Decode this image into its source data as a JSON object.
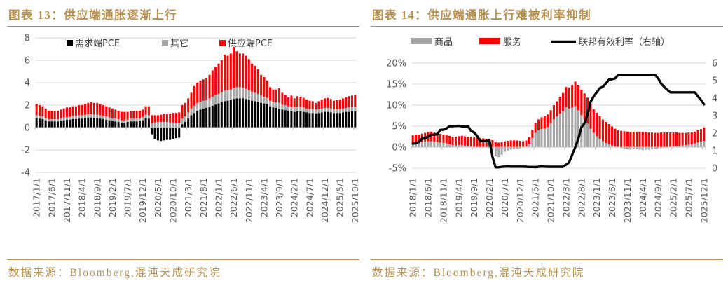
{
  "page": {
    "background": "#FFFFFF"
  },
  "panels": [
    {
      "title": "图表 13：供应端通胀逐渐上行",
      "source": "数据来源：Bloomberg,混沌天成研究院"
    },
    {
      "title": "图表 14：供应端通胀上行难被利率抑制",
      "source": "数据来源：Bloomberg,混沌天成研究院"
    }
  ],
  "colors": {
    "accent_gold": "#B9914E",
    "bar_black": "#000000",
    "bar_gray": "#A6A6A6",
    "bar_red": "#FF0000",
    "line_black": "#000000",
    "gridline": "#D9D9D9",
    "axis_line": "#BFBFBF",
    "tick_text": "#595959",
    "legend_text": "#404040"
  },
  "chart_data": [
    {
      "type": "bar",
      "subtype": "stacked",
      "title": "图表 13：供应端通胀逐渐上行",
      "x_start": "2017/1/1",
      "x_end": "2025/10/1",
      "x_freq": "monthly",
      "x_tick_every": 5,
      "x_tick_labels": [
        "2017/1/1",
        "2017/6/1",
        "2017/11/1",
        "2018/4/1",
        "2018/9/1",
        "2019/2/1",
        "2019/7/1",
        "2019/12/1",
        "2020/5/1",
        "2020/10/1",
        "2021/3/1",
        "2021/8/1",
        "2022/1/1",
        "2022/6/1",
        "2022/11/1",
        "2023/4/1",
        "2023/9/1",
        "2024/2/1",
        "2024/7/1",
        "2024/12/1",
        "2025/5/1",
        "2025/10/1"
      ],
      "ylim": [
        -4,
        8
      ],
      "y_tick_step": 2,
      "grid": true,
      "legend_position": "top",
      "series": [
        {
          "name": "需求端PCE",
          "kind": "bar",
          "color_key": "bar_black",
          "values": [
            0.85,
            0.8,
            0.75,
            0.65,
            0.55,
            0.55,
            0.55,
            0.55,
            0.6,
            0.65,
            0.7,
            0.7,
            0.75,
            0.75,
            0.8,
            0.8,
            0.85,
            0.9,
            0.9,
            0.85,
            0.85,
            0.8,
            0.75,
            0.7,
            0.65,
            0.6,
            0.55,
            0.5,
            0.45,
            0.45,
            0.5,
            0.55,
            0.55,
            0.55,
            0.6,
            0.65,
            0.85,
            0.8,
            -0.6,
            -1.0,
            -1.15,
            -1.2,
            -1.15,
            -1.1,
            -1.1,
            -1.0,
            -0.95,
            -0.9,
            0.3,
            0.5,
            0.8,
            1.1,
            1.3,
            1.5,
            1.6,
            1.7,
            1.75,
            1.85,
            1.95,
            2.05,
            2.15,
            2.25,
            2.35,
            2.4,
            2.45,
            2.55,
            2.6,
            2.6,
            2.6,
            2.55,
            2.5,
            2.4,
            2.35,
            2.3,
            2.2,
            2.15,
            2.1,
            1.9,
            1.8,
            1.75,
            1.7,
            1.6,
            1.55,
            1.5,
            1.45,
            1.4,
            1.45,
            1.45,
            1.4,
            1.35,
            1.3,
            1.3,
            1.25,
            1.3,
            1.35,
            1.4,
            1.4,
            1.35,
            1.3,
            1.3,
            1.3,
            1.35,
            1.4,
            1.4,
            1.45,
            1.45
          ]
        },
        {
          "name": "其它",
          "kind": "bar",
          "color_key": "bar_gray",
          "values": [
            0.25,
            0.25,
            0.25,
            0.2,
            0.2,
            0.2,
            0.2,
            0.2,
            0.2,
            0.25,
            0.25,
            0.25,
            0.3,
            0.3,
            0.3,
            0.3,
            0.3,
            0.3,
            0.3,
            0.3,
            0.3,
            0.3,
            0.3,
            0.3,
            0.25,
            0.25,
            0.25,
            0.25,
            0.2,
            0.2,
            0.2,
            0.25,
            0.25,
            0.25,
            0.25,
            0.3,
            0.3,
            0.3,
            0.35,
            0.45,
            0.5,
            0.5,
            0.5,
            0.5,
            0.45,
            0.45,
            0.4,
            0.4,
            0.5,
            0.5,
            0.55,
            0.6,
            0.65,
            0.7,
            0.7,
            0.7,
            0.7,
            0.75,
            0.8,
            0.85,
            0.85,
            0.9,
            0.95,
            0.95,
            0.95,
            1.0,
            1.0,
            1.0,
            0.95,
            0.9,
            0.85,
            0.8,
            0.75,
            0.7,
            0.65,
            0.6,
            0.55,
            0.5,
            0.5,
            0.5,
            0.5,
            0.45,
            0.45,
            0.4,
            0.4,
            0.4,
            0.4,
            0.4,
            0.4,
            0.35,
            0.35,
            0.35,
            0.35,
            0.35,
            0.35,
            0.35,
            0.35,
            0.35,
            0.35,
            0.35,
            0.35,
            0.35,
            0.35,
            0.4,
            0.4,
            0.4
          ]
        },
        {
          "name": "供应端PCE",
          "kind": "bar",
          "color_key": "bar_red",
          "values": [
            1.0,
            0.95,
            0.9,
            0.85,
            0.75,
            0.75,
            0.75,
            0.75,
            0.8,
            0.8,
            0.85,
            0.85,
            0.85,
            0.85,
            0.9,
            0.9,
            0.95,
            1.0,
            1.05,
            1.05,
            1.05,
            1.0,
            0.95,
            0.9,
            0.9,
            0.85,
            0.8,
            0.75,
            0.75,
            0.75,
            0.7,
            0.7,
            0.7,
            0.7,
            0.65,
            0.65,
            0.75,
            0.8,
            0.75,
            0.65,
            0.6,
            0.65,
            0.7,
            0.75,
            0.8,
            0.85,
            0.9,
            0.95,
            1.2,
            1.2,
            1.25,
            1.4,
            1.75,
            1.8,
            1.9,
            1.9,
            1.95,
            2.1,
            2.35,
            2.5,
            2.7,
            2.85,
            3.2,
            3.05,
            3.2,
            3.65,
            3.2,
            3.0,
            3.05,
            2.95,
            2.75,
            2.5,
            2.4,
            2.2,
            1.85,
            1.75,
            1.55,
            1.2,
            1.1,
            1.15,
            1.3,
            1.05,
            0.9,
            0.8,
            1.0,
            0.8,
            0.95,
            0.9,
            0.85,
            0.8,
            0.75,
            0.7,
            0.6,
            0.7,
            0.8,
            0.85,
            0.9,
            0.85,
            0.75,
            0.8,
            0.85,
            0.9,
            0.95,
            1.0,
            1.0,
            1.05
          ]
        }
      ]
    },
    {
      "type": "bar",
      "subtype": "stacked+line",
      "title": "图表 14：供应端通胀上行难被利率抑制",
      "x_start": "2018/1/1",
      "x_end": "2025/12/1",
      "x_freq": "monthly",
      "x_tick_every": 5,
      "x_tick_labels": [
        "2018/1/1",
        "2018/6/1",
        "2018/11/1",
        "2019/4/1",
        "2019/9/1",
        "2020/2/1",
        "2020/7/1",
        "2020/12/1",
        "2021/5/1",
        "2021/10/1",
        "2022/3/1",
        "2022/8/1",
        "2023/1/1",
        "2023/6/1",
        "2023/11/1",
        "2024/4/1",
        "2024/9/1",
        "2025/2/1",
        "2025/7/1",
        "2025/12/1"
      ],
      "ylim_left": [
        -5,
        20
      ],
      "y_tick_step": 5,
      "y_suffix": "%",
      "ylim_right": [
        0,
        6
      ],
      "y_right_step": 1,
      "grid": true,
      "legend_position": "top",
      "series": [
        {
          "name": "商品",
          "kind": "bar",
          "axis": "left",
          "color_key": "bar_gray",
          "values": [
            1.1,
            1.2,
            1.1,
            1.2,
            1.3,
            1.4,
            1.4,
            1.3,
            1.2,
            1.1,
            1.0,
            0.9,
            0.7,
            0.5,
            0.4,
            0.5,
            0.5,
            0.4,
            0.3,
            0.2,
            0.1,
            0.0,
            -0.1,
            0.0,
            -0.1,
            -0.2,
            -0.7,
            -2.2,
            -2.4,
            -1.8,
            -1.1,
            -0.8,
            -0.6,
            -0.5,
            -0.4,
            -0.3,
            -0.1,
            0.2,
            0.8,
            2.2,
            3.4,
            4.0,
            4.3,
            4.5,
            4.8,
            5.6,
            6.6,
            7.3,
            8.0,
            8.6,
            9.6,
            9.2,
            9.4,
            9.8,
            8.8,
            7.6,
            6.6,
            5.6,
            4.4,
            3.4,
            2.6,
            2.0,
            1.4,
            1.0,
            0.7,
            0.4,
            0.2,
            0.0,
            -0.2,
            -0.4,
            -0.5,
            -0.6,
            -0.5,
            -0.5,
            -0.6,
            -0.7,
            -0.6,
            -0.6,
            -0.5,
            -0.4,
            -0.3,
            -0.2,
            -0.1,
            0.0,
            0.1,
            0.2,
            0.3,
            0.3,
            0.4,
            0.5,
            0.6,
            0.7,
            0.9,
            1.1,
            1.3,
            1.5
          ]
        },
        {
          "name": "服务",
          "kind": "bar",
          "axis": "left",
          "color_key": "bar_red",
          "values": [
            1.7,
            1.8,
            1.9,
            2.0,
            2.1,
            2.2,
            2.3,
            2.2,
            2.2,
            2.1,
            2.0,
            2.0,
            2.0,
            2.0,
            2.1,
            2.1,
            2.2,
            2.2,
            2.2,
            2.3,
            2.3,
            2.2,
            2.2,
            2.1,
            2.0,
            2.0,
            1.7,
            1.2,
            1.1,
            1.2,
            1.4,
            1.5,
            1.6,
            1.6,
            1.6,
            1.5,
            1.4,
            1.4,
            1.6,
            1.9,
            2.3,
            2.6,
            2.8,
            2.9,
            3.0,
            3.2,
            3.4,
            3.6,
            4.0,
            4.3,
            4.7,
            5.0,
            5.3,
            5.8,
            6.0,
            6.1,
            6.2,
            6.2,
            6.0,
            5.6,
            5.6,
            5.4,
            5.2,
            5.0,
            4.8,
            4.5,
            4.2,
            4.0,
            3.9,
            3.8,
            3.7,
            3.6,
            3.6,
            3.6,
            3.7,
            3.6,
            3.6,
            3.5,
            3.5,
            3.4,
            3.4,
            3.5,
            3.5,
            3.5,
            3.4,
            3.3,
            3.2,
            3.1,
            3.0,
            2.9,
            2.9,
            2.8,
            2.8,
            2.9,
            3.0,
            3.2
          ]
        },
        {
          "name": "联邦有效利率（右轴）",
          "kind": "line",
          "axis": "right",
          "color_key": "line_black",
          "values": [
            1.41,
            1.42,
            1.51,
            1.69,
            1.7,
            1.82,
            1.91,
            1.91,
            1.95,
            2.19,
            2.2,
            2.27,
            2.4,
            2.4,
            2.41,
            2.42,
            2.39,
            2.38,
            2.4,
            2.13,
            2.04,
            1.83,
            1.55,
            1.55,
            1.55,
            1.58,
            0.65,
            0.05,
            0.05,
            0.08,
            0.09,
            0.1,
            0.09,
            0.09,
            0.09,
            0.09,
            0.09,
            0.08,
            0.07,
            0.07,
            0.06,
            0.08,
            0.1,
            0.09,
            0.08,
            0.08,
            0.08,
            0.08,
            0.08,
            0.08,
            0.2,
            0.33,
            0.77,
            1.21,
            1.68,
            2.33,
            2.56,
            3.08,
            3.78,
            4.1,
            4.33,
            4.57,
            4.65,
            4.83,
            5.06,
            5.08,
            5.12,
            5.33,
            5.33,
            5.33,
            5.33,
            5.33,
            5.33,
            5.33,
            5.33,
            5.33,
            5.33,
            5.33,
            5.33,
            5.33,
            5.13,
            4.83,
            4.64,
            4.48,
            4.33,
            4.33,
            4.33,
            4.33,
            4.33,
            4.33,
            4.33,
            4.33,
            4.33,
            4.1,
            3.9,
            3.65
          ]
        }
      ]
    }
  ]
}
